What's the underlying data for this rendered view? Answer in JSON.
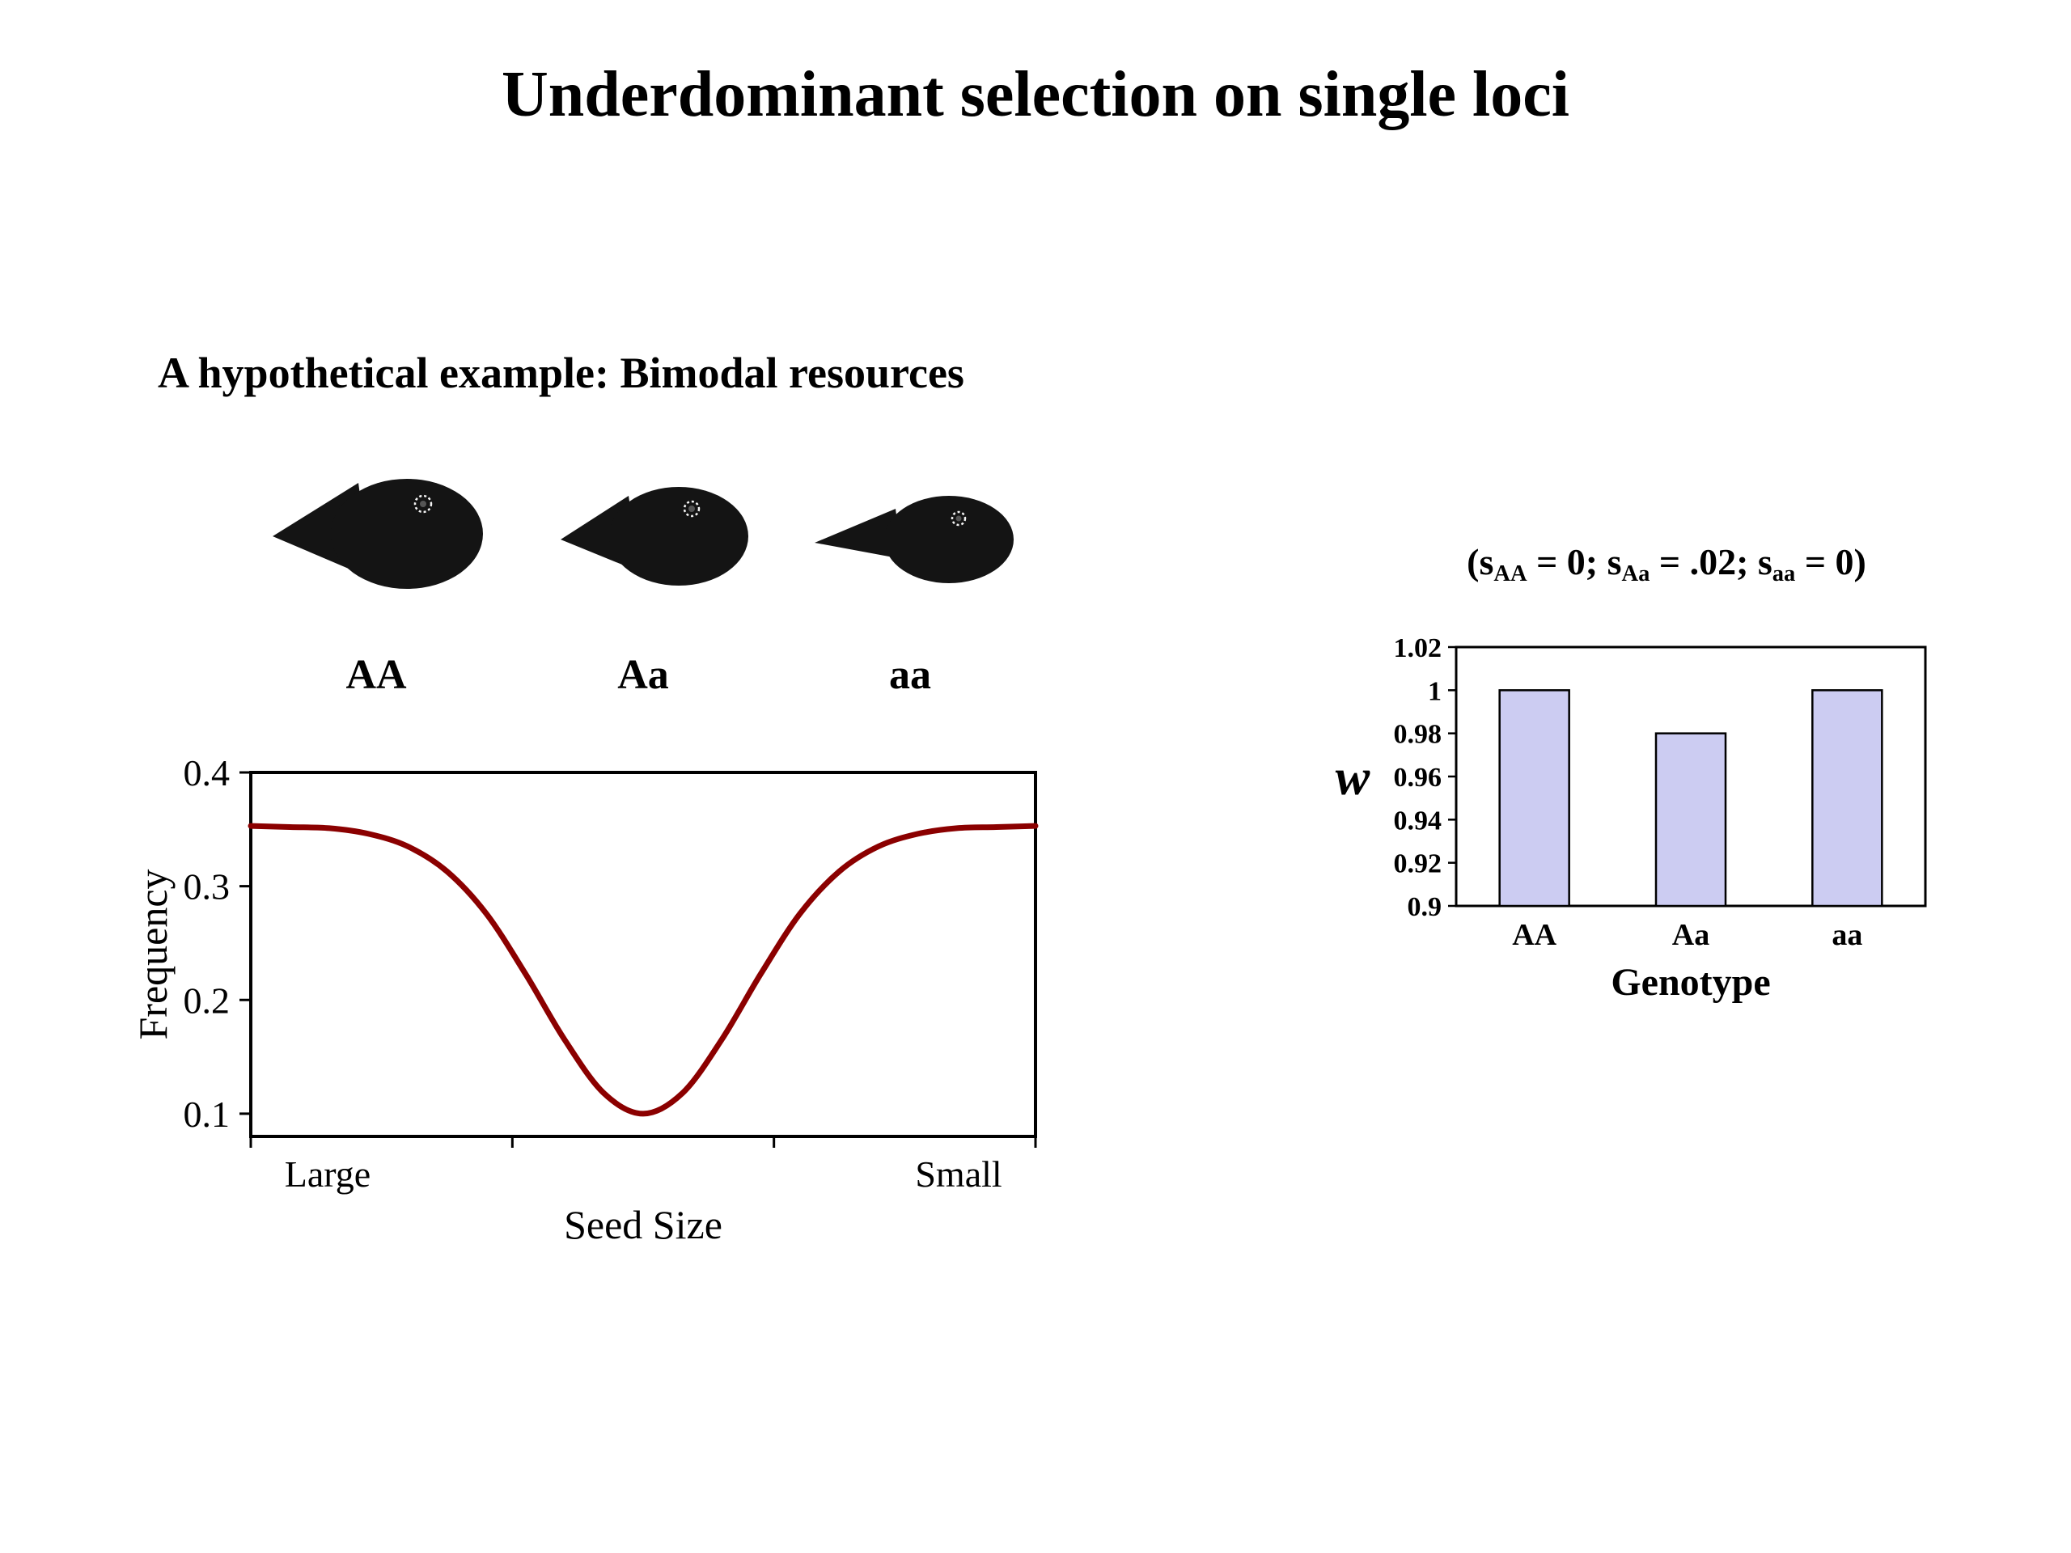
{
  "slide": {
    "title": "Underdominant selection on single loci",
    "subtitle": "A hypothetical example: Bimodal resources"
  },
  "finches": {
    "labels": [
      "AA",
      "Aa",
      "aa"
    ]
  },
  "annotation": {
    "segments": [
      {
        "text": "(s"
      },
      {
        "sub": "AA"
      },
      {
        "text": " = 0; s"
      },
      {
        "sub": "Aa"
      },
      {
        "text": " = .02; s"
      },
      {
        "sub": "aa"
      },
      {
        "text": " = 0)"
      }
    ]
  },
  "colors": {
    "curve": "#8b0000",
    "bar_fill": "#ccccf2",
    "bar_stroke": "#000000",
    "axis": "#000000"
  },
  "chart_data": [
    {
      "id": "seed-frequency",
      "type": "line",
      "title": "",
      "xlabel": "Seed Size",
      "ylabel": "Frequency",
      "x_tick_labels": [
        "Large",
        "Small"
      ],
      "y_ticks": [
        0.1,
        0.2,
        0.3,
        0.4
      ],
      "y_tick_labels": [
        "0.1",
        "0.2",
        "0.3",
        "0.4"
      ],
      "ylim": [
        0.08,
        0.4
      ],
      "xlim": [
        0,
        1
      ],
      "grid": false,
      "legend": "none",
      "line_color": "#8b0000",
      "x": [
        0,
        0.05,
        0.1,
        0.15,
        0.2,
        0.25,
        0.3,
        0.35,
        0.4,
        0.45,
        0.5,
        0.55,
        0.6,
        0.65,
        0.7,
        0.75,
        0.8,
        0.85,
        0.9,
        0.95,
        1
      ],
      "y": [
        0.353,
        0.352,
        0.351,
        0.346,
        0.335,
        0.313,
        0.276,
        0.223,
        0.165,
        0.118,
        0.1,
        0.118,
        0.165,
        0.223,
        0.276,
        0.313,
        0.335,
        0.346,
        0.351,
        0.352,
        0.353
      ]
    },
    {
      "id": "genotype-fitness",
      "type": "bar",
      "title": "",
      "categories": [
        "AA",
        "Aa",
        "aa"
      ],
      "values": [
        1.0,
        0.98,
        1.0
      ],
      "xlabel": "Genotype",
      "ylabel": "w",
      "y_ticks": [
        0.9,
        0.92,
        0.94,
        0.96,
        0.98,
        1.0,
        1.02
      ],
      "y_tick_labels": [
        "0.9",
        "0.92",
        "0.94",
        "0.96",
        "0.98",
        "1",
        "1.02"
      ],
      "ylim": [
        0.9,
        1.02
      ],
      "grid": false,
      "legend": "none",
      "bar_fill": "#ccccf2",
      "bar_stroke": "#000000"
    }
  ]
}
